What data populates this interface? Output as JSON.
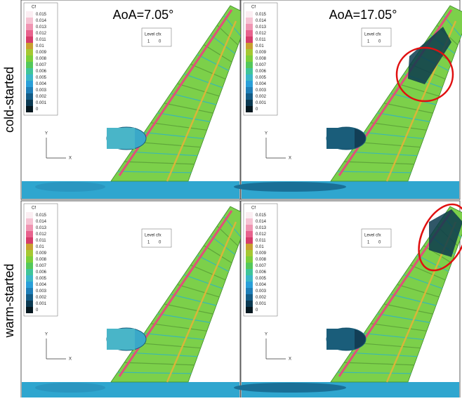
{
  "columns": [
    "AoA=7.05°",
    "AoA=17.05°"
  ],
  "rows": [
    "cold-started",
    "warm-started"
  ],
  "legend": {
    "title": "Cf",
    "levels": [
      0.015,
      0.014,
      0.013,
      0.012,
      0.011,
      0.01,
      0.009,
      0.008,
      0.007,
      0.006,
      0.005,
      0.004,
      0.003,
      0.002,
      0.001,
      0
    ]
  },
  "level_box": {
    "title": "Level cfx",
    "values": [
      1,
      0
    ]
  },
  "axes": {
    "y": "Y",
    "x": "X"
  }
}
